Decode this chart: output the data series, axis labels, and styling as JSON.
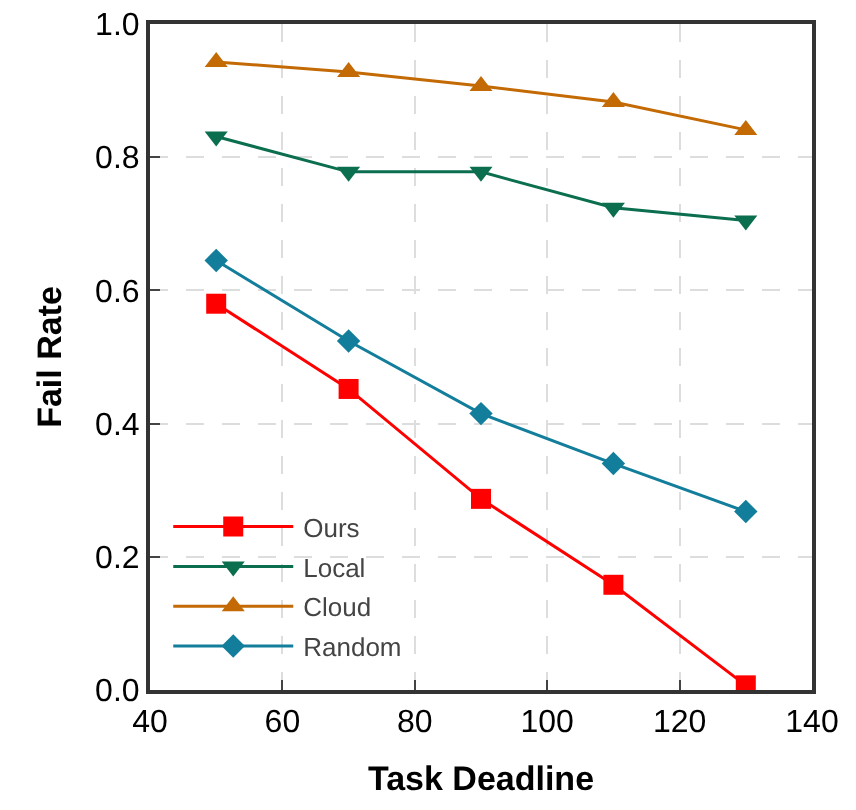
{
  "chart_data": {
    "type": "line",
    "xlabel": "Task Deadline",
    "ylabel": "Fail Rate",
    "x": [
      50,
      70,
      90,
      110,
      130
    ],
    "series": [
      {
        "name": "Ours",
        "color": "#ff0000",
        "marker": "square",
        "values": [
          0.58,
          0.452,
          0.287,
          0.158,
          0.007
        ]
      },
      {
        "name": "Local",
        "color": "#0b6e4f",
        "marker": "triangle-down",
        "values": [
          0.831,
          0.778,
          0.778,
          0.724,
          0.705
        ]
      },
      {
        "name": "Cloud",
        "color": "#c36a05",
        "marker": "triangle",
        "values": [
          0.943,
          0.928,
          0.907,
          0.883,
          0.841
        ]
      },
      {
        "name": "Random",
        "color": "#137e9b",
        "marker": "diamond",
        "values": [
          0.645,
          0.524,
          0.415,
          0.34,
          0.268
        ]
      }
    ],
    "xlim": [
      40,
      140
    ],
    "xticks": [
      40,
      60,
      80,
      100,
      120,
      140
    ],
    "ylim": [
      0,
      1
    ],
    "yticks": [
      {
        "value": 0,
        "label": "0.0"
      },
      0.2,
      0.4,
      0.6,
      0.8,
      {
        "value": 1,
        "label": "1.0"
      }
    ],
    "grid": true,
    "legend": "bottom left",
    "line_style": "solid"
  }
}
